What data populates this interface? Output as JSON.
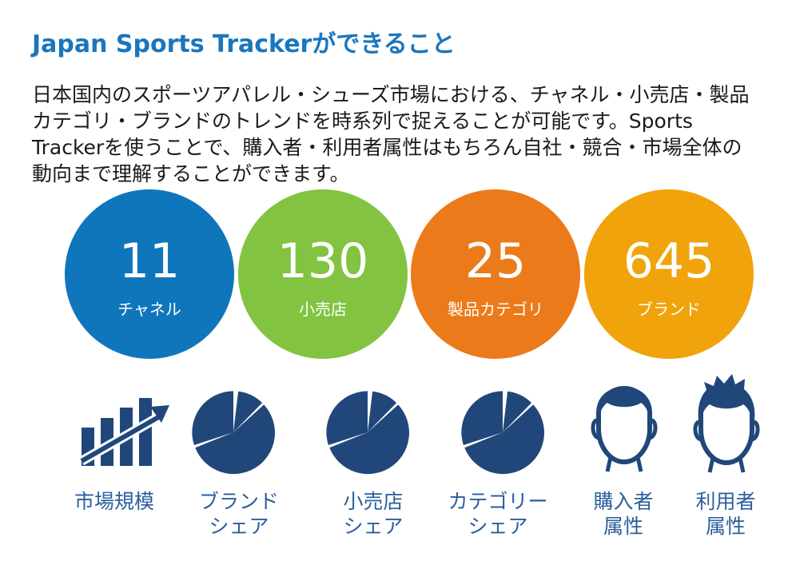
{
  "title": "Japan Sports Trackerができること",
  "description": "日本国内のスポーツアパレル・シューズ市場における、チャネル・小売店・製品カテゴリ・ブランドのトレンドを時系列で捉えることが可能です。Sports Trackerを使うことで、購入者・利用者属性はもちろん自社・競合・市場全体の動向まで理解することができます。",
  "stats": [
    {
      "value": "11",
      "label": "チャネル",
      "color": "#1076bc"
    },
    {
      "value": "130",
      "label": "小売店",
      "color": "#82c341"
    },
    {
      "value": "25",
      "label": "製品カテゴリ",
      "color": "#eb7b1a"
    },
    {
      "value": "645",
      "label": "ブランド",
      "color": "#f0a30a"
    }
  ],
  "features": [
    {
      "icon": "bar-chart-growth-icon",
      "label": "市場規模"
    },
    {
      "icon": "pie-chart-icon",
      "label": "ブランド\nシェア"
    },
    {
      "icon": "pie-chart-icon",
      "label": "小売店\nシェア"
    },
    {
      "icon": "pie-chart-icon",
      "label": "カテゴリー\nシェア"
    },
    {
      "icon": "male-head-short-hair-icon",
      "label": "購入者\n属性"
    },
    {
      "icon": "male-head-spiky-hair-icon",
      "label": "利用者\n属性"
    }
  ],
  "colors": {
    "icon": "#21477a",
    "title": "#1a76bd",
    "feature_label": "#2a5f9e"
  }
}
